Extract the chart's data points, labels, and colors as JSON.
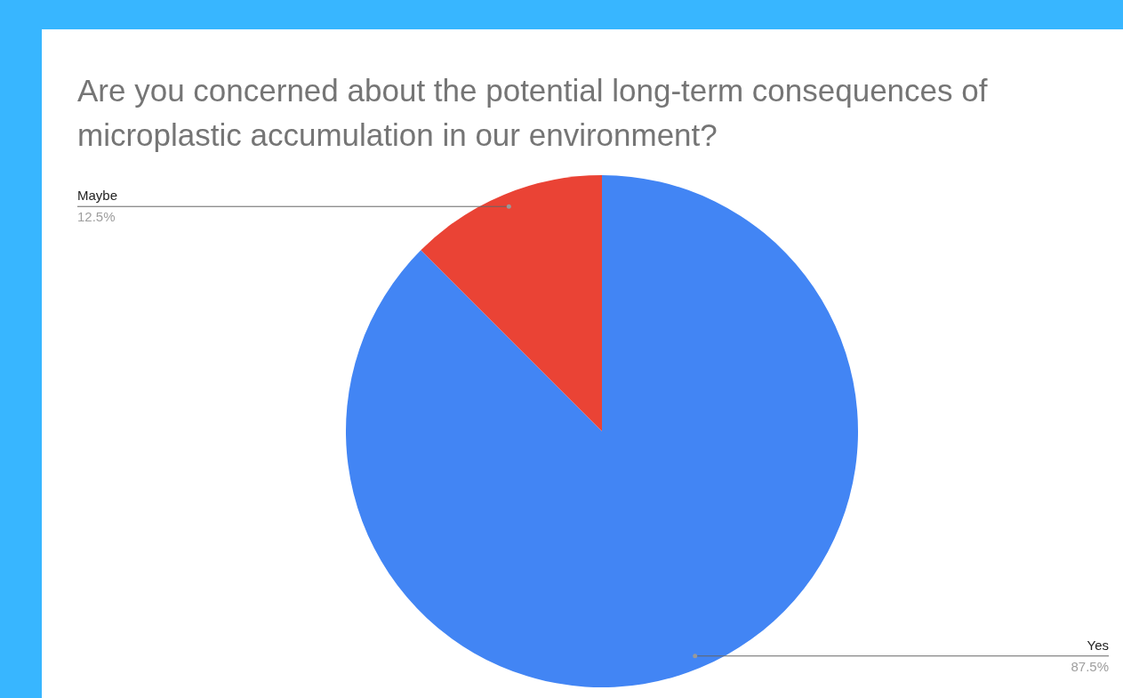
{
  "chart_data": {
    "type": "pie",
    "title": "Are you concerned about the potential long-term consequences of microplastic accumulation in our environment?",
    "categories": [
      "Yes",
      "Maybe"
    ],
    "values": [
      87.5,
      12.5
    ],
    "colors": [
      "#4285f4",
      "#ea4335"
    ],
    "value_labels": [
      "87.5%",
      "12.5%"
    ]
  }
}
